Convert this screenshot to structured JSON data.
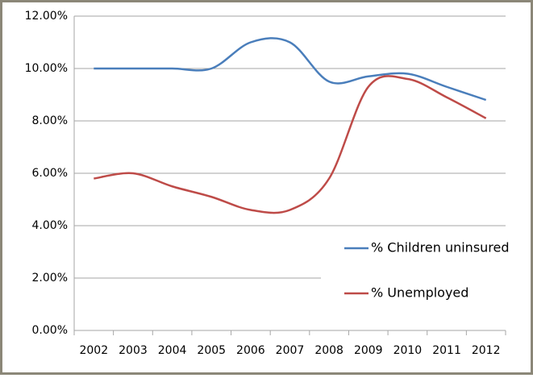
{
  "chart_data": {
    "type": "line",
    "categories": [
      "2002",
      "2003",
      "2004",
      "2005",
      "2006",
      "2007",
      "2008",
      "2009",
      "2010",
      "2011",
      "2012"
    ],
    "series": [
      {
        "name": "% Children uninsured",
        "color": "#4a7ebb",
        "values": [
          10,
          10,
          10,
          10,
          11,
          11,
          9.5,
          9.7,
          9.8,
          9.3,
          8.8
        ]
      },
      {
        "name": "% Unemployed",
        "color": "#be4b48",
        "values": [
          5.8,
          6.0,
          5.5,
          5.1,
          4.6,
          4.6,
          5.8,
          9.3,
          9.6,
          8.9,
          8.1
        ]
      }
    ],
    "ylim": [
      0,
      12
    ],
    "yticks": [
      {
        "value": 0,
        "label": "0.00%"
      },
      {
        "value": 2,
        "label": "2.00%"
      },
      {
        "value": 4,
        "label": "4.00%"
      },
      {
        "value": 6,
        "label": "6.00%"
      },
      {
        "value": 8,
        "label": "8.00%"
      },
      {
        "value": 10,
        "label": "10.00%"
      },
      {
        "value": 12,
        "label": "12.00%"
      }
    ],
    "grid": true,
    "smooth": true,
    "legend": "right"
  }
}
